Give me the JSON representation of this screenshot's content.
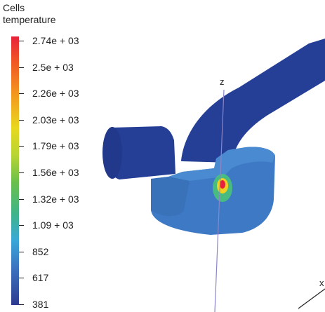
{
  "legend": {
    "title_line1": "Cells",
    "title_line2": "temperature",
    "ticks": [
      "2.74e + 03",
      "2.5e + 03",
      "2.26e + 03",
      "2.03e + 03",
      "1.79e + 03",
      "1.56e + 03",
      "1.32e + 03",
      "1.09 + 03",
      "852",
      "617",
      "381"
    ]
  },
  "axes": {
    "z_label": "z",
    "x_label": "x"
  },
  "colors": {
    "pipe": "#253f96",
    "body": "#3d79c4",
    "body_light": "#4a8ad0",
    "z_axis": "#8a86c8",
    "hot_core": "#e8213a",
    "hot_mid": "#f0d020",
    "hot_outer": "#49c27a"
  }
}
